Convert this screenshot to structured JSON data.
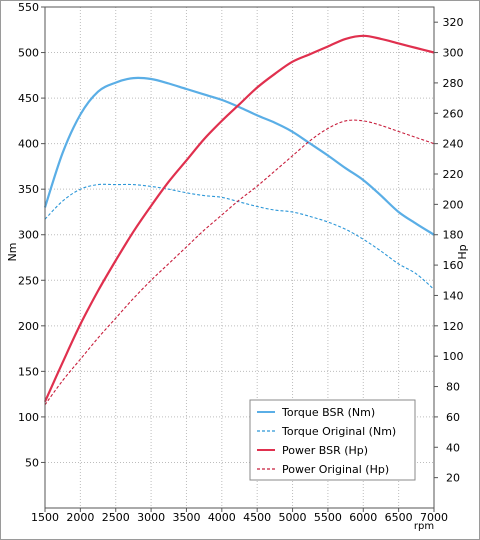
{
  "chart_data": {
    "type": "line",
    "xlabel": "rpm",
    "ylabel_left": "Nm",
    "ylabel_right": "Hp",
    "xlim": [
      1500,
      7000
    ],
    "ylim_left": [
      0,
      550
    ],
    "ylim_right": [
      0,
      330
    ],
    "x_ticks": [
      1500,
      2000,
      2500,
      3000,
      3500,
      4000,
      4500,
      5000,
      5500,
      6000,
      6500,
      7000
    ],
    "y_ticks_left": [
      50,
      100,
      150,
      200,
      250,
      300,
      350,
      400,
      450,
      500,
      550
    ],
    "y_ticks_right": [
      20,
      40,
      60,
      80,
      100,
      120,
      140,
      160,
      180,
      200,
      220,
      240,
      260,
      280,
      300,
      320
    ],
    "grid": "dotted",
    "legend_position": "bottom-right",
    "series": [
      {
        "name": "Torque BSR (Nm)",
        "axis": "left",
        "color": "#5aaee6",
        "style": "solid",
        "x": [
          1500,
          1750,
          2000,
          2250,
          2500,
          2750,
          3000,
          3250,
          3500,
          3750,
          4000,
          4250,
          4500,
          4750,
          5000,
          5250,
          5500,
          5750,
          6000,
          6250,
          6500,
          6750,
          7000
        ],
        "y": [
          330,
          390,
          432,
          457,
          467,
          472,
          471,
          466,
          460,
          454,
          448,
          440,
          431,
          423,
          413,
          400,
          387,
          373,
          360,
          343,
          325,
          312,
          300
        ]
      },
      {
        "name": "Torque Original (Nm)",
        "axis": "left",
        "color": "#2c97d8",
        "style": "dashed",
        "x": [
          1500,
          1750,
          2000,
          2250,
          2500,
          2750,
          3000,
          3250,
          3500,
          3750,
          4000,
          4250,
          4500,
          4750,
          5000,
          5250,
          5500,
          5750,
          6000,
          6250,
          6500,
          6750,
          7000
        ],
        "y": [
          317,
          337,
          350,
          355,
          355,
          355,
          353,
          350,
          346,
          343,
          341,
          336,
          331,
          327,
          325,
          320,
          314,
          306,
          295,
          282,
          268,
          257,
          240
        ]
      },
      {
        "name": "Power BSR (Hp)",
        "axis": "right",
        "color": "#e0304e",
        "style": "solid",
        "x": [
          1500,
          1750,
          2000,
          2250,
          2500,
          2750,
          3000,
          3250,
          3500,
          3750,
          4000,
          4250,
          4500,
          4750,
          5000,
          5250,
          5500,
          5750,
          6000,
          6250,
          6500,
          6750,
          7000
        ],
        "y": [
          70,
          96,
          121,
          143,
          163,
          182,
          199,
          215,
          229,
          243,
          255,
          266,
          277,
          286,
          294,
          299,
          304,
          309,
          311,
          309,
          306,
          303,
          300
        ]
      },
      {
        "name": "Power Original (Hp)",
        "axis": "right",
        "color": "#c81e3c",
        "style": "dashed",
        "x": [
          1500,
          1750,
          2000,
          2250,
          2500,
          2750,
          3000,
          3250,
          3500,
          3750,
          4000,
          4250,
          4500,
          4750,
          5000,
          5250,
          5500,
          5750,
          6000,
          6250,
          6500,
          6750,
          7000
        ],
        "y": [
          68,
          84,
          98,
          112,
          125,
          138,
          150,
          161,
          172,
          183,
          193,
          203,
          212,
          222,
          232,
          242,
          250,
          255,
          255,
          252,
          248,
          244,
          240
        ]
      }
    ]
  }
}
